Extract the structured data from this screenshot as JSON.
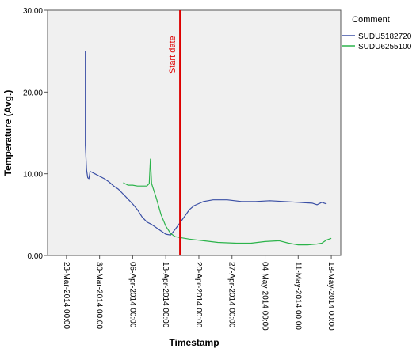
{
  "chart_data": {
    "type": "line",
    "title": "",
    "xlabel": "Timestamp",
    "ylabel": "Temperature (Avg.)",
    "ylim": [
      0,
      30
    ],
    "y_ticks": [
      {
        "value": 0,
        "label": "0.00"
      },
      {
        "value": 10,
        "label": "10.00"
      },
      {
        "value": 20,
        "label": "20.00"
      },
      {
        "value": 30,
        "label": "30.00"
      }
    ],
    "x_range": [
      "2014-03-19",
      "2014-05-20"
    ],
    "x_ticks": [
      {
        "date": "2014-03-23",
        "label": "23-Mar-2014 00:00"
      },
      {
        "date": "2014-03-30",
        "label": "30-Mar-2014 00:00"
      },
      {
        "date": "2014-04-06",
        "label": "06-Apr-2014 00:00"
      },
      {
        "date": "2014-04-13",
        "label": "13-Apr-2014 00:00"
      },
      {
        "date": "2014-04-20",
        "label": "20-Apr-2014 00:00"
      },
      {
        "date": "2014-04-27",
        "label": "27-Apr-2014 00:00"
      },
      {
        "date": "2014-05-04",
        "label": "04-May-2014 00:00"
      },
      {
        "date": "2014-05-11",
        "label": "11-May-2014 00:00"
      },
      {
        "date": "2014-05-18",
        "label": "18-May-2014 00:00"
      }
    ],
    "legend": {
      "title": "Comment",
      "placement": "right",
      "entries": [
        "SUDU5182720",
        "SUDU6255100"
      ]
    },
    "annotations": [
      {
        "type": "vertical_line",
        "x": "2014-04-16",
        "label": "Start date",
        "color": "#dd0000"
      }
    ],
    "grid": false,
    "series": [
      {
        "name": "SUDU5182720",
        "color": "#3a4fa5",
        "points": [
          {
            "x": "2014-03-27",
            "y": 25.0
          },
          {
            "x": "2014-03-27",
            "y": 13.5
          },
          {
            "x": "2014-03-27 06:00",
            "y": 10.5
          },
          {
            "x": "2014-03-27 12:00",
            "y": 9.5
          },
          {
            "x": "2014-03-27 18:00",
            "y": 9.4
          },
          {
            "x": "2014-03-28",
            "y": 10.3
          },
          {
            "x": "2014-03-29",
            "y": 10.0
          },
          {
            "x": "2014-03-30",
            "y": 9.7
          },
          {
            "x": "2014-03-31",
            "y": 9.4
          },
          {
            "x": "2014-04-01",
            "y": 9.0
          },
          {
            "x": "2014-04-02",
            "y": 8.5
          },
          {
            "x": "2014-04-03",
            "y": 8.1
          },
          {
            "x": "2014-04-04",
            "y": 7.5
          },
          {
            "x": "2014-04-05",
            "y": 6.9
          },
          {
            "x": "2014-04-06",
            "y": 6.3
          },
          {
            "x": "2014-04-07",
            "y": 5.6
          },
          {
            "x": "2014-04-08",
            "y": 4.7
          },
          {
            "x": "2014-04-09",
            "y": 4.1
          },
          {
            "x": "2014-04-10",
            "y": 3.8
          },
          {
            "x": "2014-04-11",
            "y": 3.4
          },
          {
            "x": "2014-04-12",
            "y": 3.0
          },
          {
            "x": "2014-04-13",
            "y": 2.6
          },
          {
            "x": "2014-04-14",
            "y": 2.5
          },
          {
            "x": "2014-04-15",
            "y": 3.2
          },
          {
            "x": "2014-04-16",
            "y": 4.0
          },
          {
            "x": "2014-04-17",
            "y": 4.8
          },
          {
            "x": "2014-04-18",
            "y": 5.6
          },
          {
            "x": "2014-04-19",
            "y": 6.1
          },
          {
            "x": "2014-04-21",
            "y": 6.6
          },
          {
            "x": "2014-04-23",
            "y": 6.8
          },
          {
            "x": "2014-04-26",
            "y": 6.8
          },
          {
            "x": "2014-04-29",
            "y": 6.6
          },
          {
            "x": "2014-05-02",
            "y": 6.6
          },
          {
            "x": "2014-05-05",
            "y": 6.7
          },
          {
            "x": "2014-05-08",
            "y": 6.6
          },
          {
            "x": "2014-05-11",
            "y": 6.5
          },
          {
            "x": "2014-05-14",
            "y": 6.4
          },
          {
            "x": "2014-05-15",
            "y": 6.2
          },
          {
            "x": "2014-05-16",
            "y": 6.5
          },
          {
            "x": "2014-05-17",
            "y": 6.3
          }
        ]
      },
      {
        "name": "SUDU6255100",
        "color": "#2bb34a",
        "points": [
          {
            "x": "2014-04-04",
            "y": 8.9
          },
          {
            "x": "2014-04-05",
            "y": 8.6
          },
          {
            "x": "2014-04-06",
            "y": 8.6
          },
          {
            "x": "2014-04-07",
            "y": 8.5
          },
          {
            "x": "2014-04-08",
            "y": 8.5
          },
          {
            "x": "2014-04-09",
            "y": 8.5
          },
          {
            "x": "2014-04-09 12:00",
            "y": 8.8
          },
          {
            "x": "2014-04-09 18:00",
            "y": 11.8
          },
          {
            "x": "2014-04-10",
            "y": 8.8
          },
          {
            "x": "2014-04-11",
            "y": 7.0
          },
          {
            "x": "2014-04-12",
            "y": 5.0
          },
          {
            "x": "2014-04-13",
            "y": 3.6
          },
          {
            "x": "2014-04-14",
            "y": 2.7
          },
          {
            "x": "2014-04-15",
            "y": 2.3
          },
          {
            "x": "2014-04-16",
            "y": 2.2
          },
          {
            "x": "2014-04-18",
            "y": 2.0
          },
          {
            "x": "2014-04-21",
            "y": 1.8
          },
          {
            "x": "2014-04-24",
            "y": 1.6
          },
          {
            "x": "2014-04-28",
            "y": 1.5
          },
          {
            "x": "2014-05-01",
            "y": 1.5
          },
          {
            "x": "2014-05-04",
            "y": 1.7
          },
          {
            "x": "2014-05-07",
            "y": 1.8
          },
          {
            "x": "2014-05-09",
            "y": 1.5
          },
          {
            "x": "2014-05-11",
            "y": 1.3
          },
          {
            "x": "2014-05-13",
            "y": 1.3
          },
          {
            "x": "2014-05-15",
            "y": 1.4
          },
          {
            "x": "2014-05-16",
            "y": 1.5
          },
          {
            "x": "2014-05-17",
            "y": 1.9
          },
          {
            "x": "2014-05-18",
            "y": 2.1
          }
        ]
      }
    ]
  }
}
